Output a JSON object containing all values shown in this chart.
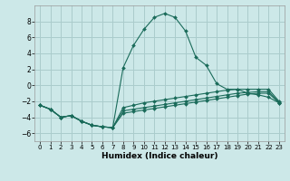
{
  "xlabel": "Humidex (Indice chaleur)",
  "background_color": "#cce8e8",
  "grid_color": "#aacccc",
  "line_color": "#1a6b5a",
  "xlim": [
    -0.5,
    23.5
  ],
  "ylim": [
    -7,
    10
  ],
  "xticks": [
    0,
    1,
    2,
    3,
    4,
    5,
    6,
    7,
    8,
    9,
    10,
    11,
    12,
    13,
    14,
    15,
    16,
    17,
    18,
    19,
    20,
    21,
    22,
    23
  ],
  "yticks": [
    -6,
    -4,
    -2,
    0,
    2,
    4,
    6,
    8
  ],
  "lines": [
    {
      "x": [
        0,
        1,
        2,
        3,
        4,
        5,
        6,
        7,
        8,
        9,
        10,
        11,
        12,
        13,
        14,
        15,
        16,
        17,
        18,
        19,
        20,
        21,
        22,
        23
      ],
      "y": [
        -2.5,
        -3.0,
        -4.0,
        -3.8,
        -4.5,
        -5.0,
        -5.2,
        -5.3,
        2.2,
        5.0,
        7.0,
        8.5,
        9.0,
        8.5,
        6.8,
        3.5,
        2.5,
        0.2,
        -0.5,
        -0.5,
        -1.0,
        -1.2,
        -1.5,
        -2.2
      ]
    },
    {
      "x": [
        0,
        1,
        2,
        3,
        4,
        5,
        6,
        7,
        8,
        9,
        10,
        11,
        12,
        13,
        14,
        15,
        16,
        17,
        18,
        19,
        20,
        21,
        22,
        23
      ],
      "y": [
        -2.5,
        -3.0,
        -4.0,
        -3.8,
        -4.5,
        -5.0,
        -5.2,
        -5.3,
        -2.8,
        -2.5,
        -2.2,
        -2.0,
        -1.8,
        -1.6,
        -1.4,
        -1.2,
        -1.0,
        -0.8,
        -0.6,
        -0.5,
        -0.5,
        -0.5,
        -0.5,
        -2.0
      ]
    },
    {
      "x": [
        0,
        1,
        2,
        3,
        4,
        5,
        6,
        7,
        8,
        9,
        10,
        11,
        12,
        13,
        14,
        15,
        16,
        17,
        18,
        19,
        20,
        21,
        22,
        23
      ],
      "y": [
        -2.5,
        -3.0,
        -4.0,
        -3.8,
        -4.5,
        -5.0,
        -5.2,
        -5.3,
        -3.2,
        -3.0,
        -2.8,
        -2.6,
        -2.4,
        -2.2,
        -2.0,
        -1.8,
        -1.6,
        -1.4,
        -1.2,
        -1.0,
        -0.9,
        -0.8,
        -0.8,
        -2.1
      ]
    },
    {
      "x": [
        0,
        1,
        2,
        3,
        4,
        5,
        6,
        7,
        8,
        9,
        10,
        11,
        12,
        13,
        14,
        15,
        16,
        17,
        18,
        19,
        20,
        21,
        22,
        23
      ],
      "y": [
        -2.5,
        -3.0,
        -4.0,
        -3.8,
        -4.5,
        -5.0,
        -5.2,
        -5.3,
        -3.5,
        -3.3,
        -3.1,
        -2.9,
        -2.7,
        -2.5,
        -2.3,
        -2.1,
        -1.9,
        -1.7,
        -1.5,
        -1.3,
        -1.1,
        -1.0,
        -1.0,
        -2.2
      ]
    }
  ]
}
